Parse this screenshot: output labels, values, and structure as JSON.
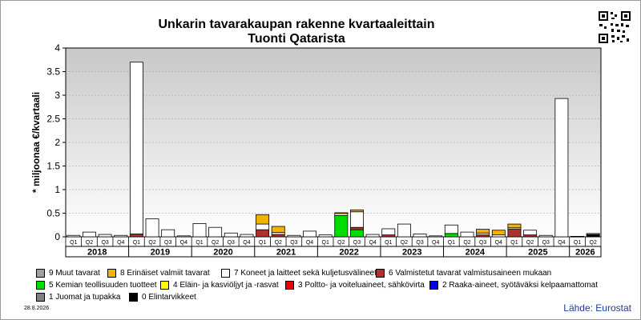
{
  "title_line1": "Unkarin tavarakaupan rakenne kvartaaleittain",
  "title_line2": "Tuonti Qatarista",
  "date_label": "28.8.2026",
  "source_label": "Lähde: Eurostat",
  "legend": [
    {
      "label": "9 Muut tavarat",
      "color": "#a0a0a0"
    },
    {
      "label": "8 Erinäiset valmiit tavarat",
      "color": "#f0b400"
    },
    {
      "label": "7 Koneet ja laitteet sekä kuljetusvälineet",
      "color": "#ffffff"
    },
    {
      "label": "6 Valmistetut tavarat valmistusaineen mukaan",
      "color": "#b03030"
    },
    {
      "label": "5 Kemian teollisuuden tuotteet",
      "color": "#00dd00"
    },
    {
      "label": "4 Eläin- ja kasviöljyt ja -rasvat",
      "color": "#ffff00"
    },
    {
      "label": "3 Poltto- ja voiteluaineet, sähkövirta",
      "color": "#ee0000"
    },
    {
      "label": "2 Raaka-aineet, syötäväksi kelpaamattomat",
      "color": "#0000ee"
    },
    {
      "label": "1 Juomat ja tupakka",
      "color": "#808080"
    },
    {
      "label": "0 Elintarvikkeet",
      "color": "#000000"
    }
  ],
  "chart_data": {
    "type": "bar",
    "stacked": true,
    "ylabel": "* miljoonaa €/kvartaali",
    "ylim": [
      0,
      4
    ],
    "yticks": [
      "0",
      "0.5",
      "1",
      "1.5",
      "2",
      "2.5",
      "3",
      "3.5",
      "4"
    ],
    "grid": true,
    "years": [
      "2018",
      "2019",
      "2020",
      "2021",
      "2022",
      "2023",
      "2024",
      "2025",
      "2026"
    ],
    "categories": [
      "Q1",
      "Q2",
      "Q3",
      "Q4",
      "Q1",
      "Q2",
      "Q3",
      "Q4",
      "Q1",
      "Q2",
      "Q3",
      "Q4",
      "Q1",
      "Q2",
      "Q3",
      "Q4",
      "Q1",
      "Q2",
      "Q3",
      "Q4",
      "Q1",
      "Q2",
      "Q3",
      "Q4",
      "Q1",
      "Q2",
      "Q3",
      "Q4",
      "Q1",
      "Q2",
      "Q3",
      "Q4",
      "Q1",
      "Q2"
    ],
    "series": [
      {
        "name": "0 Elintarvikkeet",
        "color": "#000000",
        "values": [
          0,
          0,
          0,
          0,
          0,
          0,
          0,
          0,
          0,
          0,
          0,
          0,
          0,
          0,
          0,
          0,
          0,
          0,
          0,
          0,
          0,
          0,
          0,
          0,
          0,
          0,
          0,
          0,
          0,
          0,
          0,
          0,
          0,
          0.05
        ]
      },
      {
        "name": "1 Juomat ja tupakka",
        "color": "#808080",
        "values": [
          0,
          0,
          0,
          0,
          0,
          0,
          0,
          0,
          0,
          0,
          0,
          0,
          0,
          0,
          0,
          0,
          0,
          0,
          0,
          0,
          0,
          0,
          0,
          0,
          0,
          0,
          0,
          0,
          0,
          0,
          0,
          0,
          0,
          0
        ]
      },
      {
        "name": "2 Raaka-aineet, syötäväksi kelpaamattomat",
        "color": "#0000ee",
        "values": [
          0,
          0,
          0,
          0,
          0,
          0,
          0,
          0,
          0,
          0,
          0,
          0,
          0,
          0,
          0,
          0,
          0,
          0,
          0,
          0,
          0,
          0,
          0,
          0,
          0,
          0,
          0,
          0,
          0,
          0,
          0,
          0,
          0,
          0
        ]
      },
      {
        "name": "3 Poltto- ja voiteluaineet, sähkövirta",
        "color": "#ee0000",
        "values": [
          0,
          0,
          0,
          0,
          0,
          0,
          0,
          0,
          0,
          0,
          0,
          0,
          0,
          0,
          0,
          0,
          0,
          0,
          0,
          0,
          0,
          0,
          0,
          0,
          0,
          0,
          0,
          0,
          0,
          0,
          0,
          0,
          0,
          0
        ]
      },
      {
        "name": "4 Eläin- ja kasviöljyt ja -rasvat",
        "color": "#ffff00",
        "values": [
          0,
          0,
          0,
          0,
          0,
          0,
          0,
          0,
          0,
          0,
          0,
          0,
          0,
          0,
          0,
          0,
          0,
          0,
          0,
          0,
          0,
          0,
          0,
          0,
          0,
          0,
          0,
          0,
          0,
          0,
          0,
          0,
          0,
          0
        ]
      },
      {
        "name": "5 Kemian teollisuuden tuotteet",
        "color": "#00dd00",
        "values": [
          0,
          0,
          0,
          0,
          0,
          0,
          0,
          0,
          0,
          0,
          0,
          0,
          0,
          0,
          0,
          0,
          0,
          0.45,
          0.15,
          0,
          0,
          0,
          0,
          0,
          0.07,
          0,
          0,
          0,
          0,
          0,
          0,
          0,
          0,
          0
        ]
      },
      {
        "name": "6 Valmistetut tavarat valmistusaineen mukaan",
        "color": "#b03030",
        "values": [
          0,
          0,
          0,
          0,
          0.06,
          0,
          0,
          0,
          0,
          0,
          0,
          0,
          0.15,
          0.05,
          0,
          0,
          0,
          0,
          0.05,
          0,
          0.04,
          0,
          0,
          0,
          0,
          0,
          0.04,
          0,
          0.16,
          0.04,
          0,
          0,
          0,
          0
        ]
      },
      {
        "name": "7 Koneet ja laitteet sekä kuljetusvälineet",
        "color": "#ffffff",
        "values": [
          0.03,
          0.1,
          0.05,
          0.03,
          3.64,
          0.38,
          0.15,
          0.02,
          0.28,
          0.2,
          0.08,
          0.05,
          0.12,
          0.04,
          0.03,
          0.12,
          0.04,
          0.04,
          0.33,
          0.05,
          0.13,
          0.27,
          0.06,
          0.02,
          0.18,
          0.1,
          0.04,
          0.04,
          0.03,
          0.1,
          0.03,
          2.93,
          0.01,
          0.02
        ]
      },
      {
        "name": "8 Erinäiset valmiit tavarat",
        "color": "#f0b400",
        "values": [
          0,
          0,
          0,
          0,
          0,
          0,
          0,
          0,
          0,
          0,
          0,
          0,
          0.2,
          0.13,
          0,
          0,
          0,
          0.02,
          0.04,
          0,
          0,
          0,
          0,
          0,
          0,
          0,
          0.08,
          0.1,
          0.08,
          0,
          0,
          0,
          0,
          0
        ]
      },
      {
        "name": "9 Muut tavarat",
        "color": "#a0a0a0",
        "values": [
          0,
          0,
          0,
          0,
          0,
          0,
          0,
          0,
          0,
          0,
          0,
          0,
          0,
          0,
          0,
          0,
          0,
          0,
          0,
          0,
          0,
          0,
          0,
          0,
          0,
          0,
          0,
          0,
          0,
          0,
          0,
          0,
          0,
          0
        ]
      }
    ]
  }
}
